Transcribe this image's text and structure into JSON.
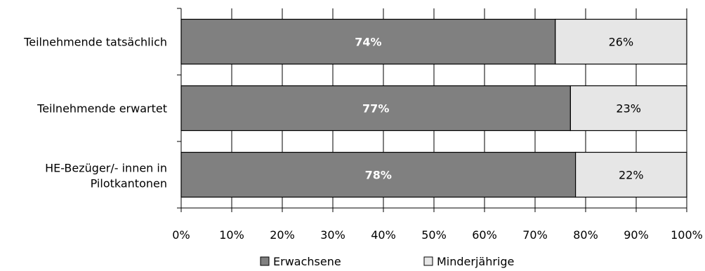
{
  "chart_data": {
    "type": "bar",
    "orientation": "horizontal",
    "stacked": true,
    "percent_stacked": true,
    "categories": [
      "Teilnehmende tatsächlich",
      "Teilnehmende erwartet",
      "HE-Bezüger/- innen in Pilotkantonen"
    ],
    "series": [
      {
        "name": "Erwachsene",
        "values": [
          74,
          77,
          78
        ],
        "labels": [
          "74%",
          "77%",
          "78%"
        ],
        "color": "#808080"
      },
      {
        "name": "Minderjährige",
        "values": [
          26,
          23,
          22
        ],
        "labels": [
          "26%",
          "23%",
          "22%"
        ],
        "color": "#e6e6e6"
      }
    ],
    "xlim": [
      0,
      100
    ],
    "xticks": [
      0,
      10,
      20,
      30,
      40,
      50,
      60,
      70,
      80,
      90,
      100
    ],
    "xtick_labels": [
      "0%",
      "10%",
      "20%",
      "30%",
      "40%",
      "50%",
      "60%",
      "70%",
      "80%",
      "90%",
      "100%"
    ],
    "grid": true,
    "legend_position": "bottom"
  }
}
